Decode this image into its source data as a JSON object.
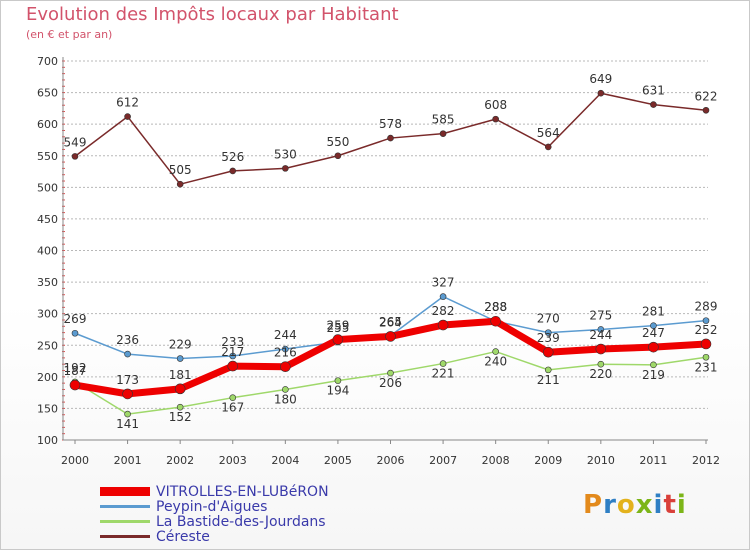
{
  "chart_data": {
    "type": "line",
    "title": "Evolution des Impôts locaux par Habitant",
    "subtitle": "(en € et par an)",
    "x": [
      "2000",
      "2001",
      "2002",
      "2003",
      "2004",
      "2005",
      "2006",
      "2007",
      "2008",
      "2009",
      "2010",
      "2011",
      "2012"
    ],
    "y_ticks": [
      100,
      150,
      200,
      250,
      300,
      350,
      400,
      450,
      500,
      550,
      600,
      650,
      700
    ],
    "ylim": [
      100,
      700
    ],
    "grid": "horizontal dashed",
    "series": [
      {
        "name": "Céreste",
        "color": "#7a2a2a",
        "values": [
          549,
          612,
          505,
          526,
          530,
          550,
          578,
          585,
          608,
          564,
          649,
          631,
          622
        ],
        "labels": [
          "549",
          "612",
          "505",
          "526",
          "530",
          "550",
          "578",
          "585",
          "608",
          "564",
          "649",
          "631",
          "622"
        ]
      },
      {
        "name": "Peypin-d'Aigues",
        "color": "#5b9bd0",
        "values": [
          269,
          236,
          229,
          233,
          244,
          255,
          265,
          327,
          288,
          270,
          275,
          281,
          289
        ],
        "labels": [
          "269",
          "236",
          "229",
          "233",
          "244",
          "255",
          "265",
          "327",
          "288",
          "270",
          "275",
          "281",
          "289"
        ]
      },
      {
        "name": "La Bastide-des-Jourdans",
        "color": "#9fd86a",
        "values": [
          192,
          141,
          152,
          167,
          180,
          194,
          206,
          221,
          240,
          211,
          220,
          219,
          231
        ],
        "labels": [
          "192",
          "141",
          "152",
          "167",
          "180",
          "194",
          "206",
          "221",
          "240",
          "211",
          "220",
          "219",
          "231"
        ]
      },
      {
        "name": "VITROLLES-EN-LUBéRON",
        "color": "#ee0000",
        "values": [
          187,
          173,
          181,
          217,
          216,
          259,
          264,
          282,
          288,
          239,
          244,
          247,
          252
        ],
        "labels": [
          "187",
          "173",
          "181",
          "217",
          "216",
          "259",
          "264",
          "282",
          "288",
          "239",
          "244",
          "247",
          "252"
        ]
      }
    ],
    "legend": [
      "VITROLLES-EN-LUBéRON",
      "Peypin-d'Aigues",
      "La Bastide-des-Jourdans",
      "Céreste"
    ]
  },
  "brand": "Proxiti"
}
